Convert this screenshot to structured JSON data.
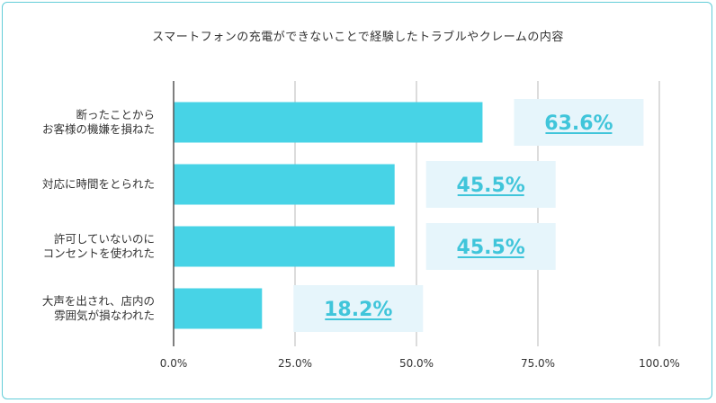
{
  "chart_data": {
    "type": "bar",
    "orientation": "horizontal",
    "title": "スマートフォンの充電ができないことで経験したトラブルやクレームの内容",
    "categories": [
      [
        "断ったことから",
        "お客様の機嫌を損ねた"
      ],
      [
        "対応に時間をとられた"
      ],
      [
        "許可していないのに",
        "コンセントを使われた"
      ],
      [
        "大声を出され、店内の",
        "雰囲気が損なわれた"
      ]
    ],
    "values": [
      63.6,
      45.5,
      45.5,
      18.2
    ],
    "data_labels": [
      "63.6%",
      "45.5%",
      "45.5%",
      "18.2%"
    ],
    "xlim": [
      0,
      100
    ],
    "ticks": [
      0,
      25,
      50,
      75,
      100
    ],
    "tick_labels": [
      "0.0%",
      "25.0%",
      "50.0%",
      "75.0%",
      "100.0%"
    ],
    "grid": true,
    "bar_color": "#47d3e6",
    "label_box_color": "#e6f5fb",
    "label_text_color": "#40c5da",
    "grid_color": "#d0d0d0",
    "axis_color": "#555555"
  }
}
